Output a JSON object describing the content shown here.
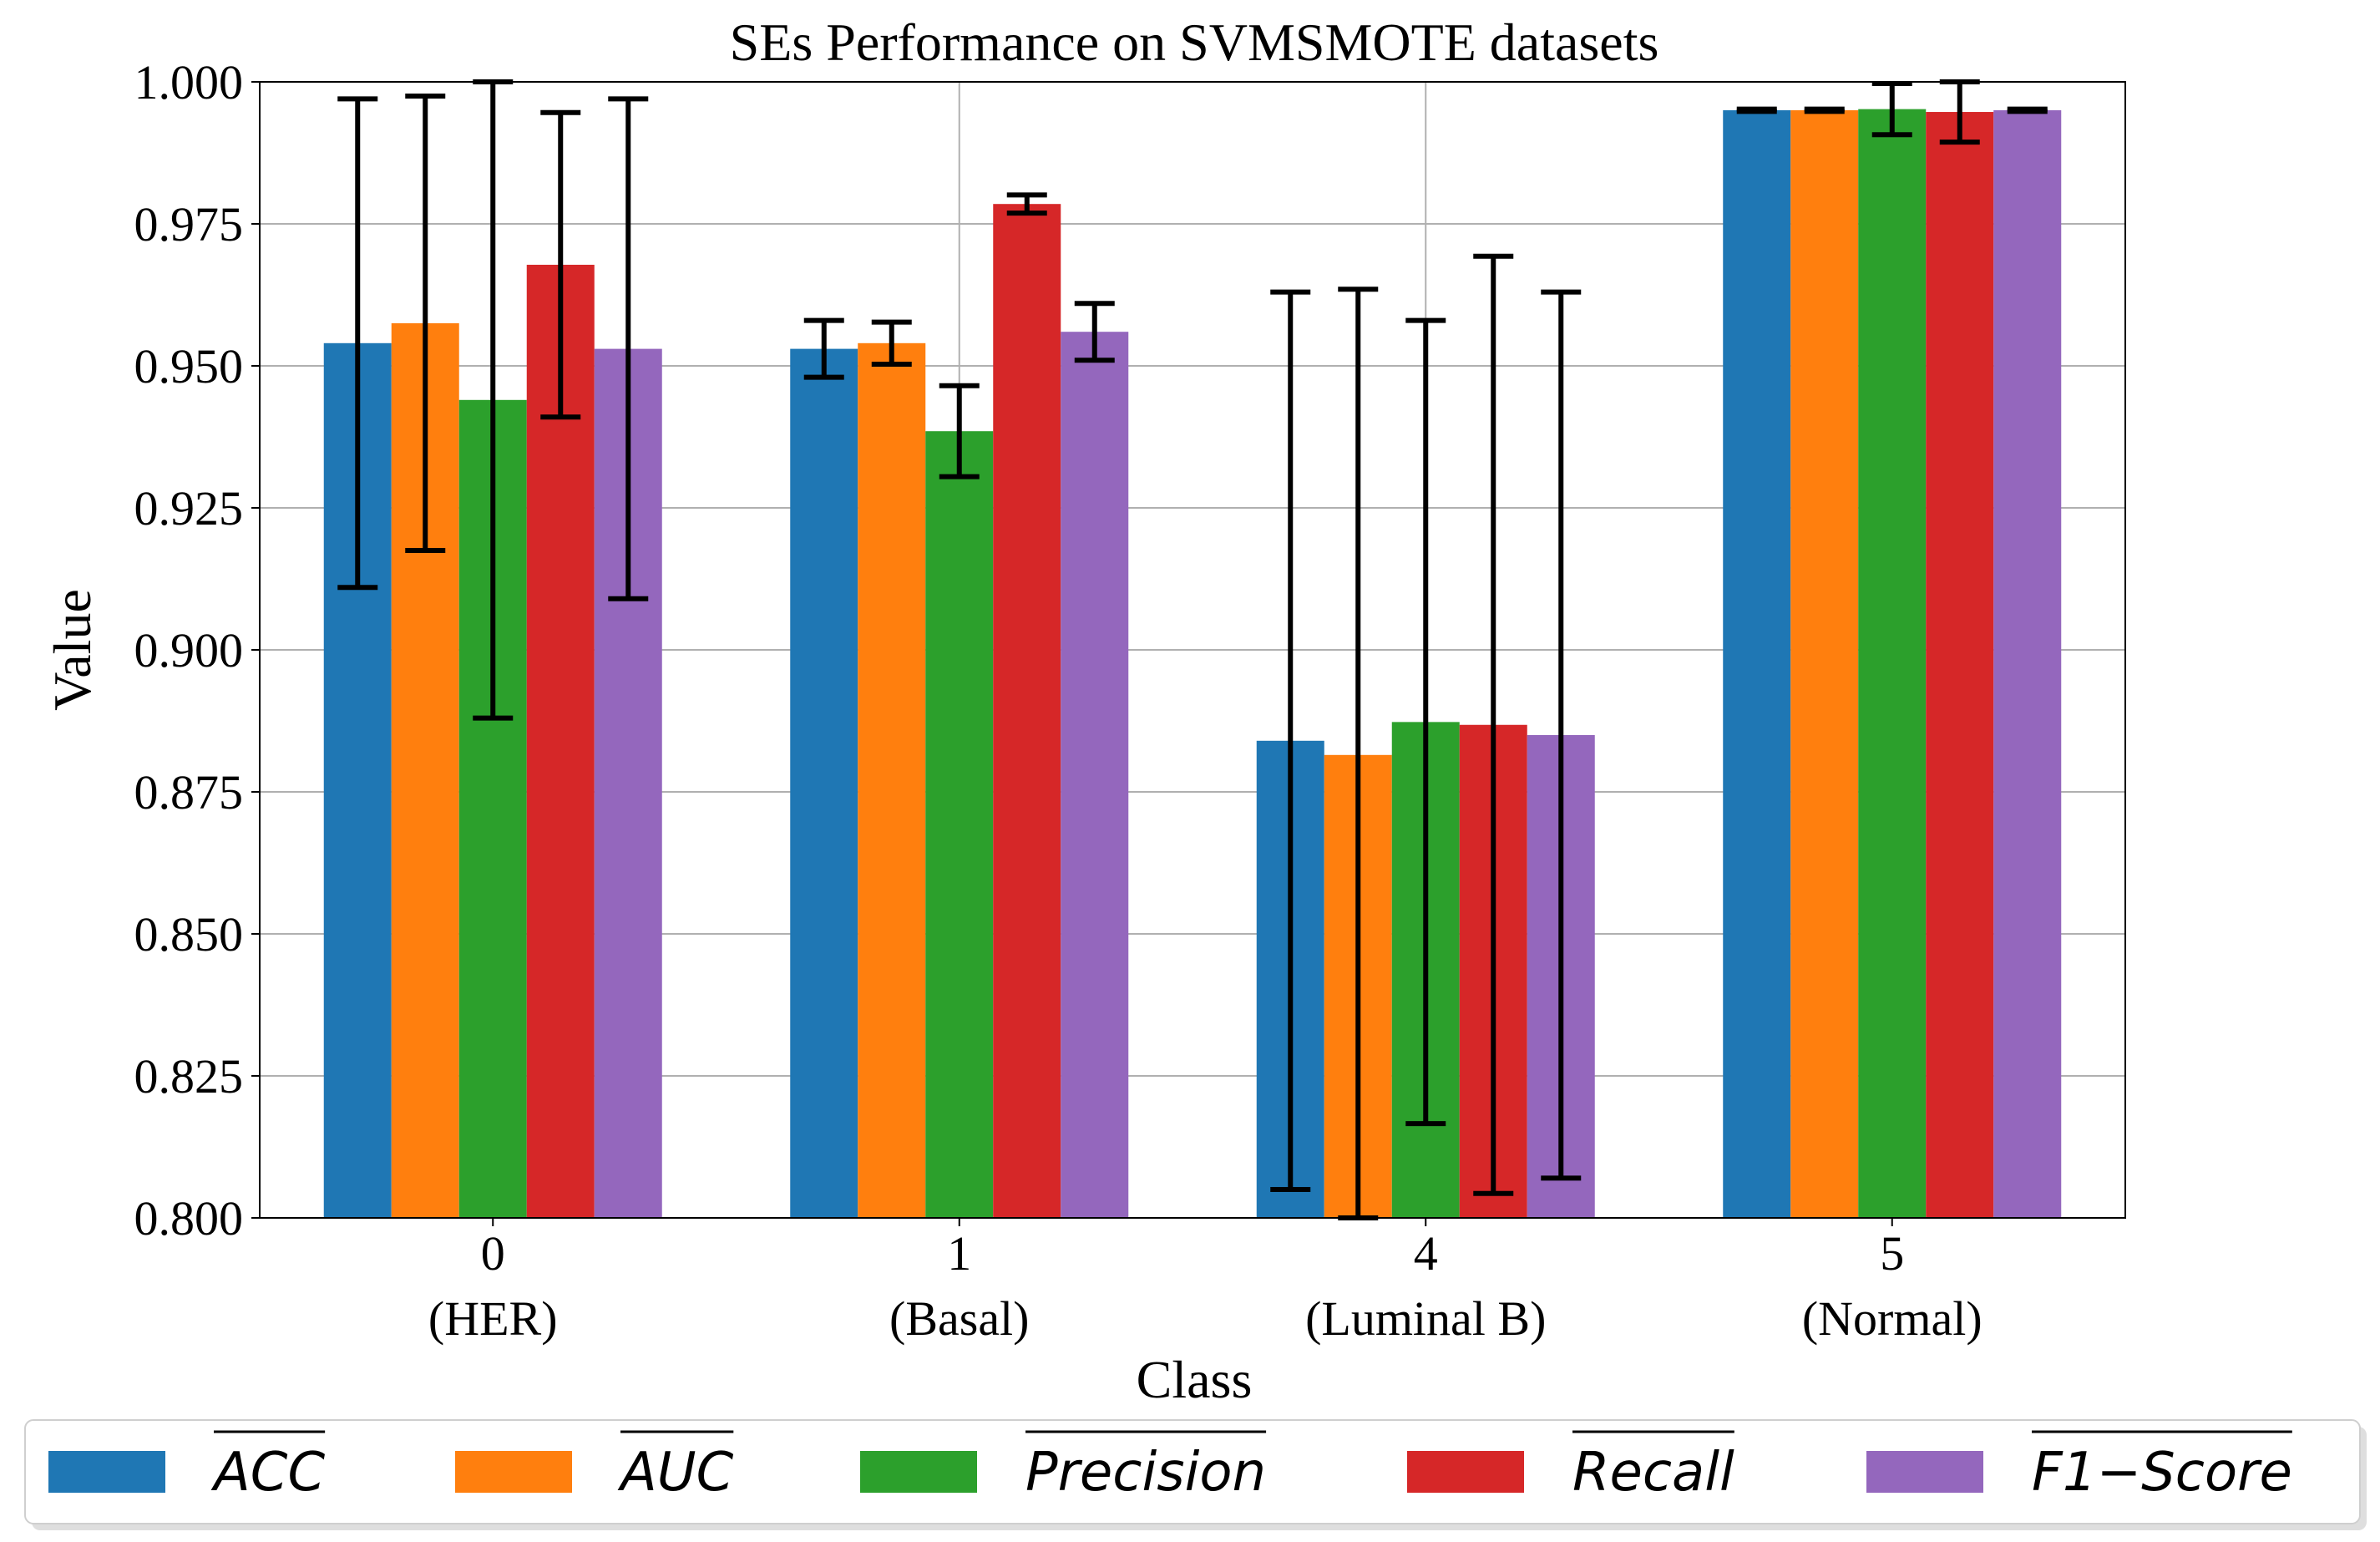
{
  "chart_data": {
    "type": "bar",
    "title": "SEs Performance on SVMSMOTE datasets",
    "xlabel": "Class",
    "ylabel": "Value",
    "ylim": [
      0.8,
      1.0
    ],
    "yticks": [
      "0.800",
      "0.825",
      "0.850",
      "0.875",
      "0.900",
      "0.925",
      "0.950",
      "0.975",
      "1.000"
    ],
    "ytick_values": [
      0.8,
      0.825,
      0.85,
      0.875,
      0.9,
      0.925,
      0.95,
      0.975,
      1.0
    ],
    "grid": true,
    "legend_position": "bottom",
    "categories": [
      {
        "code": "0",
        "name": "(HER)"
      },
      {
        "code": "1",
        "name": "(Basal)"
      },
      {
        "code": "4",
        "name": "(Luminal B)"
      },
      {
        "code": "5",
        "name": "(Normal)"
      }
    ],
    "series": [
      {
        "name": "ACC",
        "color": "#1f77b4",
        "values": [
          0.954,
          0.953,
          0.884,
          0.995
        ],
        "errors": [
          0.043,
          0.005,
          0.079,
          0.0002
        ]
      },
      {
        "name": "AUC",
        "color": "#ff7f0e",
        "values": [
          0.9575,
          0.954,
          0.8815,
          0.995
        ],
        "errors": [
          0.04,
          0.0037,
          0.082,
          0.0002
        ]
      },
      {
        "name": "Precision",
        "color": "#2ca02c",
        "values": [
          0.944,
          0.9385,
          0.8873,
          0.9952
        ],
        "errors": [
          0.056,
          0.008,
          0.0707,
          0.0045
        ]
      },
      {
        "name": "Recall",
        "color": "#d62728",
        "values": [
          0.9678,
          0.9785,
          0.8868,
          0.9947
        ],
        "errors": [
          0.0268,
          0.0016,
          0.0825,
          0.0053
        ]
      },
      {
        "name": "F1−Score",
        "color": "#9467bd",
        "values": [
          0.953,
          0.956,
          0.885,
          0.995
        ],
        "errors": [
          0.044,
          0.005,
          0.078,
          0.0002
        ]
      }
    ]
  }
}
